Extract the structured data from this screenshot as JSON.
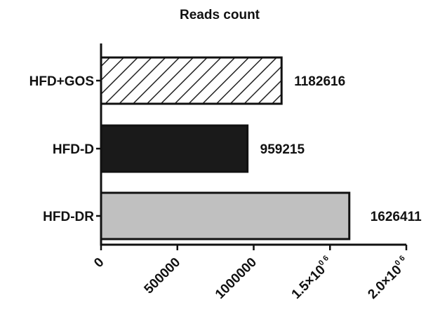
{
  "chart_data": {
    "type": "bar",
    "orientation": "horizontal",
    "title": "Reads count",
    "xlabel": "",
    "ylabel": "",
    "xlim": [
      0,
      2000000
    ],
    "grid": false,
    "legend": "none",
    "categories": [
      "HFD+GOS",
      "HFD-D",
      "HFD-DR"
    ],
    "values": [
      1182616,
      959215,
      1626411
    ],
    "value_labels": [
      "1182616",
      "959215",
      "1626411"
    ],
    "bar_styles": [
      "hatched",
      "solid-black",
      "solid-gray"
    ],
    "colors": {
      "black": "#1a1a1a",
      "gray": "#c0c0c0",
      "hatch": "#222222"
    },
    "x_ticks": [
      {
        "value": 0,
        "label": "0",
        "sup": ""
      },
      {
        "value": 500000,
        "label": "500000",
        "sup": ""
      },
      {
        "value": 1000000,
        "label": "1000000",
        "sup": ""
      },
      {
        "value": 1500000,
        "label": "1.5×10",
        "sup": "0 6"
      },
      {
        "value": 2000000,
        "label": "2.0×10",
        "sup": "0 6"
      }
    ]
  }
}
